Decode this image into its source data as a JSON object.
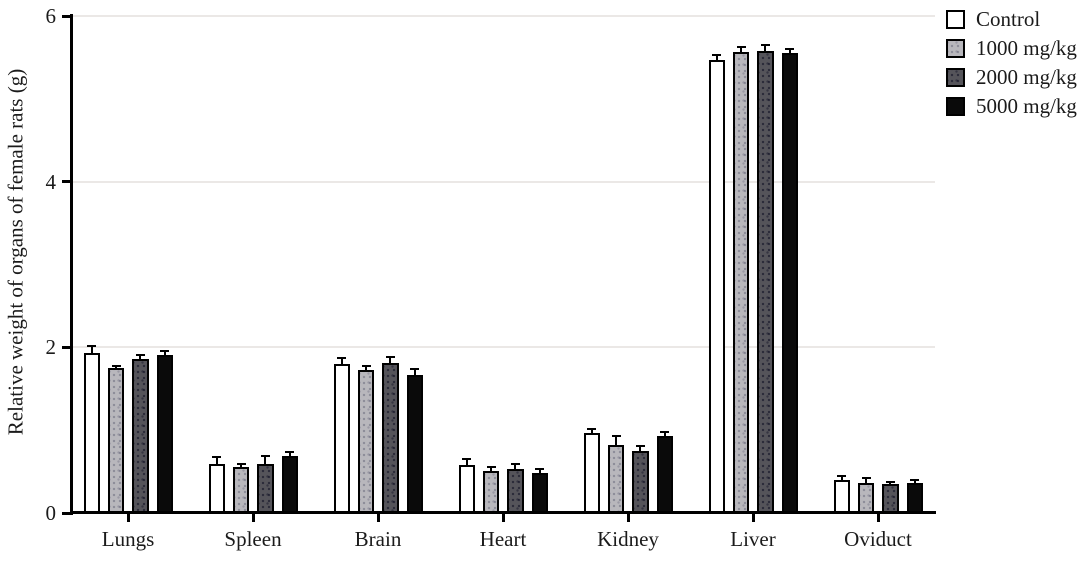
{
  "colors": {
    "background": "#ffffff",
    "axis": "#000000",
    "gridline": "#ebe8e6",
    "text": "#1b1b1b",
    "series_fills": [
      "#ffffff",
      "#b8b7bc",
      "#55545a",
      "#0a0a0a"
    ]
  },
  "chart_data": {
    "type": "bar",
    "title": "",
    "xlabel": "",
    "ylabel": "Relative weight of organs of female rats (g)",
    "ylim": [
      0,
      6
    ],
    "yticks": [
      "0",
      "2",
      "4",
      "6"
    ],
    "gridline_values": [
      2,
      4,
      6
    ],
    "grid": "horizontal light gray lines at 2, 4, 6",
    "legend_position": "outside-top-right",
    "error_bars": "upper whisker with cap",
    "categories": [
      "Lungs",
      "Spleen",
      "Brain",
      "Heart",
      "Kidney",
      "Liver",
      "Oviduct"
    ],
    "series": [
      {
        "name": "Control",
        "fill": "#ffffff",
        "pattern": "none",
        "values": [
          1.93,
          0.59,
          1.8,
          0.58,
          0.97,
          5.47,
          0.4
        ],
        "errors": [
          0.09,
          0.09,
          0.07,
          0.07,
          0.04,
          0.06,
          0.05
        ]
      },
      {
        "name": "1000 mg/kg",
        "fill": "#b8b7bc",
        "pattern": "dots-light",
        "values": [
          1.75,
          0.56,
          1.73,
          0.51,
          0.82,
          5.57,
          0.36
        ],
        "errors": [
          0.03,
          0.03,
          0.05,
          0.05,
          0.11,
          0.06,
          0.06
        ]
      },
      {
        "name": "2000 mg/kg",
        "fill": "#55545a",
        "pattern": "dots-dark",
        "values": [
          1.86,
          0.59,
          1.81,
          0.53,
          0.75,
          5.58,
          0.35
        ],
        "errors": [
          0.05,
          0.1,
          0.07,
          0.06,
          0.06,
          0.07,
          0.03
        ]
      },
      {
        "name": "5000 mg/kg",
        "fill": "#0a0a0a",
        "pattern": "none",
        "values": [
          1.91,
          0.69,
          1.67,
          0.48,
          0.93,
          5.55,
          0.36
        ],
        "errors": [
          0.05,
          0.05,
          0.07,
          0.05,
          0.05,
          0.05,
          0.04
        ]
      }
    ]
  }
}
